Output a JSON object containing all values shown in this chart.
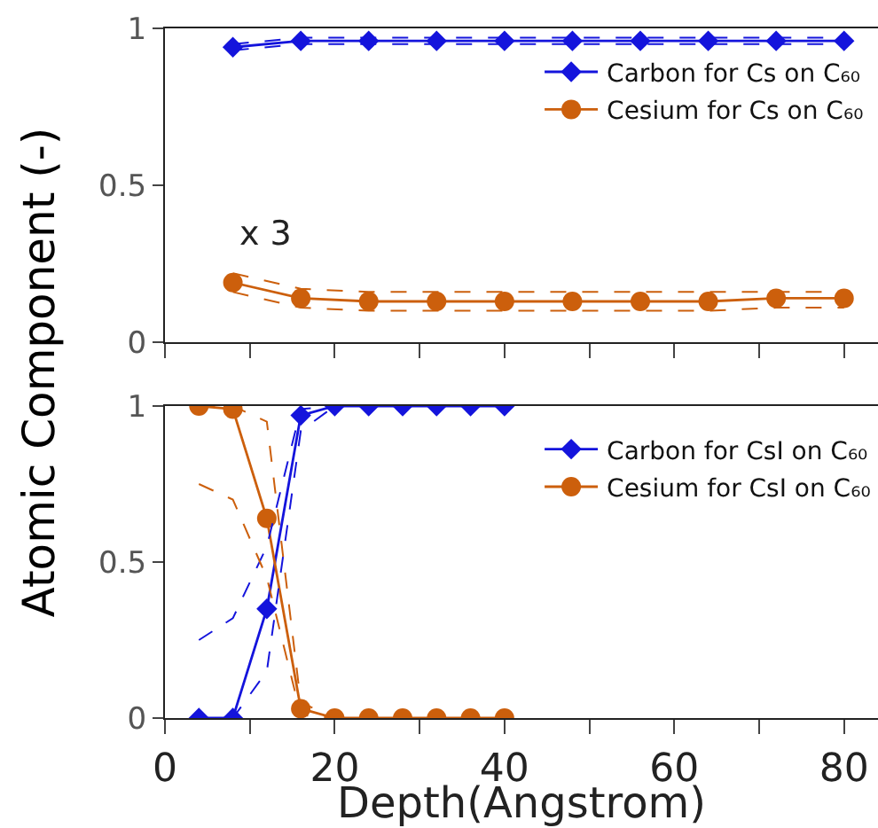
{
  "chart_data": [
    {
      "type": "line",
      "ylabel": "Atomic Component (-)",
      "x": [
        8,
        16,
        24,
        32,
        40,
        48,
        56,
        64,
        72,
        80
      ],
      "xlim": [
        0,
        84
      ],
      "ylim": [
        0,
        1
      ],
      "xticks": [
        0,
        {
          "value": 10,
          "label": null
        },
        20,
        {
          "value": 30,
          "label": null
        },
        40,
        {
          "value": 50,
          "label": null
        },
        60,
        {
          "value": 70,
          "label": null
        },
        80
      ],
      "yticks": [
        0,
        0.5,
        1
      ],
      "tick_labels": "y",
      "legend": "right",
      "series": [
        {
          "color": "#1414dc",
          "line_style": "dashed",
          "marker": "none",
          "values": [
            0.93,
            0.95,
            0.95,
            0.95,
            0.95,
            0.95,
            0.95,
            0.95,
            0.95,
            0.95
          ]
        },
        {
          "color": "#1414dc",
          "line_style": "dashed",
          "marker": "none",
          "values": [
            0.95,
            0.97,
            0.97,
            0.97,
            0.97,
            0.97,
            0.97,
            0.97,
            0.97,
            0.97
          ]
        },
        {
          "color": "#cc5f0c",
          "line_style": "dashed",
          "marker": "none",
          "values": [
            0.16,
            0.11,
            0.1,
            0.1,
            0.1,
            0.1,
            0.1,
            0.1,
            0.11,
            0.11
          ]
        },
        {
          "color": "#cc5f0c",
          "line_style": "dashed",
          "marker": "none",
          "values": [
            0.22,
            0.17,
            0.16,
            0.16,
            0.16,
            0.16,
            0.16,
            0.16,
            0.16,
            0.16
          ]
        },
        {
          "name": "Carbon for Cs on C₆₀",
          "color": "#1414dc",
          "line_style": "solid",
          "marker": "diamond",
          "values": [
            0.94,
            0.96,
            0.96,
            0.96,
            0.96,
            0.96,
            0.96,
            0.96,
            0.96,
            0.96
          ]
        },
        {
          "name": "Cesium for Cs on C₆₀",
          "color": "#cc5f0c",
          "line_style": "solid",
          "marker": "circle",
          "values": [
            0.19,
            0.14,
            0.13,
            0.13,
            0.13,
            0.13,
            0.13,
            0.13,
            0.14,
            0.14
          ]
        }
      ],
      "annotations": [
        "x 3"
      ]
    },
    {
      "type": "line",
      "xlabel": "Depth(Angstrom)",
      "x": [
        4,
        8,
        12,
        16,
        20,
        24,
        28,
        32,
        36,
        40
      ],
      "xlim": [
        0,
        84
      ],
      "ylim": [
        0,
        1
      ],
      "xticks": [
        0,
        {
          "value": 10,
          "label": null
        },
        20,
        {
          "value": 30,
          "label": null
        },
        40,
        {
          "value": 50,
          "label": null
        },
        60,
        {
          "value": 70,
          "label": null
        },
        80
      ],
      "yticks": [
        0,
        0.5,
        1
      ],
      "legend": "right",
      "series": [
        {
          "name": "Carbon for CsI on C₆₀",
          "color": "#1414dc",
          "line_style": "solid",
          "marker": "diamond",
          "values": [
            0,
            0,
            0.35,
            0.97,
            1,
            1,
            1,
            1,
            1,
            1
          ]
        },
        {
          "name": "Cesium for CsI on C₆₀",
          "color": "#cc5f0c",
          "line_style": "solid",
          "marker": "circle",
          "values": [
            1,
            0.99,
            0.64,
            0.03,
            0,
            0,
            0,
            0,
            0,
            0
          ]
        },
        {
          "color": "#1414dc",
          "line_style": "dashed",
          "marker": "none",
          "values": [
            0,
            0,
            0.15,
            0.92,
            1,
            1,
            1,
            1,
            1,
            1
          ]
        },
        {
          "color": "#1414dc",
          "line_style": "dashed",
          "marker": "none",
          "values": [
            0.25,
            0.32,
            0.55,
            0.99,
            1,
            1,
            1,
            1,
            1,
            1
          ]
        },
        {
          "color": "#cc5f0c",
          "line_style": "dashed",
          "marker": "none",
          "values": [
            0.75,
            0.7,
            0.45,
            0.01,
            0,
            0,
            0,
            0,
            0,
            0
          ]
        },
        {
          "color": "#cc5f0c",
          "line_style": "dashed",
          "marker": "none",
          "values": [
            1,
            1,
            0.95,
            0.05,
            0,
            0,
            0,
            0,
            0,
            0
          ]
        }
      ]
    }
  ]
}
